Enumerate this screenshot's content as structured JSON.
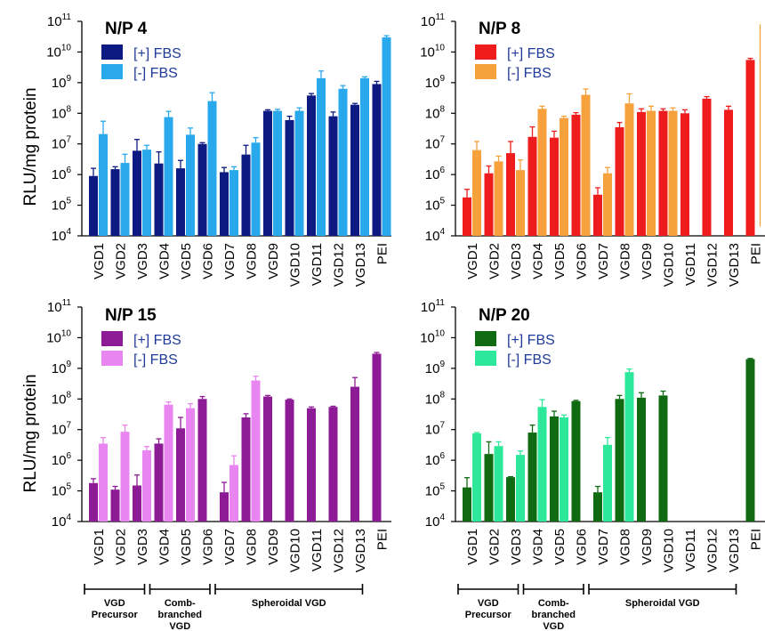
{
  "y_axis_label": "RLU/mg protein",
  "chart_data": [
    {
      "type": "bar",
      "title": "N/P 4",
      "log_scale": true,
      "ylim": [
        10000,
        100000000000
      ],
      "yticks": [
        "10",
        "10",
        "10",
        "10",
        "10",
        "10",
        "10",
        "10"
      ],
      "ytick_exponents": [
        "4",
        "5",
        "6",
        "7",
        "8",
        "9",
        "10",
        "11"
      ],
      "categories": [
        "VGD1",
        "VGD2",
        "VGD3",
        "VGD4",
        "VGD5",
        "VGD6",
        "VGD7",
        "VGD8",
        "VGD9",
        "VGD10",
        "VGD11",
        "VGD12",
        "VGD13",
        "PEI"
      ],
      "series": [
        {
          "name": "[+] FBS",
          "color": "#0d1a82",
          "values": [
            900000,
            1500000,
            6000000,
            2300000,
            1600000,
            10000000,
            1200000,
            4500000,
            120000000,
            60000000,
            380000000,
            80000000,
            190000000,
            900000000
          ],
          "errors": [
            1600000,
            1800000,
            14000000,
            5500000,
            2900000,
            11000000,
            1700000,
            9000000,
            130000000,
            80000000,
            440000000,
            110000000,
            210000000,
            1100000000
          ]
        },
        {
          "name": "[-] FBS",
          "color": "#29a8ec",
          "values": [
            21000000,
            2400000,
            6500000,
            75000000,
            20000000,
            250000000,
            1400000,
            11000000,
            120000000,
            120000000,
            1400000000,
            630000000,
            1400000000,
            30000000000
          ],
          "errors": [
            55000000,
            4600000,
            9000000,
            115000000,
            33000000,
            470000000,
            1800000,
            16000000,
            135000000,
            150000000,
            2400000000,
            800000000,
            1550000000,
            34000000000
          ]
        }
      ],
      "groups": []
    },
    {
      "type": "bar",
      "title": "N/P 8",
      "log_scale": true,
      "ylim": [
        10000,
        100000000000
      ],
      "yticks": [
        "10",
        "10",
        "10",
        "10",
        "10",
        "10",
        "10",
        "10"
      ],
      "ytick_exponents": [
        "4",
        "5",
        "6",
        "7",
        "8",
        "9",
        "10",
        "11"
      ],
      "categories": [
        "VGD1",
        "VGD2",
        "VGD3",
        "VGD4",
        "VGD5",
        "VGD6",
        "VGD7",
        "VGD8",
        "VGD9",
        "VGD10",
        "VGD11",
        "VGD12",
        "VGD13",
        "PEI"
      ],
      "series": [
        {
          "name": "[+] FBS",
          "color": "#ee1c1c",
          "values": [
            180000,
            1100000,
            5000000,
            17000000,
            16000000,
            90000000,
            220000,
            35000000,
            110000000,
            120000000,
            100000000,
            300000000,
            130000000,
            5500000000
          ],
          "errors": [
            330000,
            1900000,
            12000000,
            36000000,
            26000000,
            105000000,
            370000,
            50000000,
            140000000,
            140000000,
            130000000,
            350000000,
            170000000,
            6200000000
          ]
        },
        {
          "name": "[-] FBS",
          "color": "#f7a13c",
          "values": [
            6300000,
            2700000,
            1400000,
            140000000,
            70000000,
            400000000,
            1100000,
            210000000,
            120000000,
            120000000,
            null,
            null,
            null,
            null
          ],
          "errors": [
            12000000,
            4000000,
            3000000,
            170000000,
            80000000,
            620000000,
            1700000,
            430000000,
            170000000,
            150000000,
            null,
            null,
            null,
            80000000000
          ]
        }
      ],
      "groups": []
    },
    {
      "type": "bar",
      "title": "N/P 15",
      "log_scale": true,
      "ylim": [
        10000,
        100000000000
      ],
      "yticks": [
        "10",
        "10",
        "10",
        "10",
        "10",
        "10",
        "10",
        "10"
      ],
      "ytick_exponents": [
        "4",
        "5",
        "6",
        "7",
        "8",
        "9",
        "10",
        "11"
      ],
      "categories": [
        "VGD1",
        "VGD2",
        "VGD3",
        "VGD4",
        "VGD5",
        "VGD6",
        "VGD7",
        "VGD8",
        "VGD9",
        "VGD10",
        "VGD11",
        "VGD12",
        "VGD13",
        "PEI"
      ],
      "series": [
        {
          "name": "[+] FBS",
          "color": "#8e1b96",
          "values": [
            180000,
            110000,
            150000,
            3500000,
            11000000,
            100000000,
            90000,
            25000000,
            120000000,
            95000000,
            50000000,
            55000000,
            250000000,
            3000000000
          ],
          "errors": [
            250000,
            140000,
            330000,
            5000000,
            25000000,
            120000000,
            190000,
            33000000,
            130000000,
            100000000,
            55000000,
            58000000,
            500000000,
            3300000000
          ]
        },
        {
          "name": "[-] FBS",
          "color": "#e985f0",
          "values": [
            3500000,
            8500000,
            2100000,
            65000000,
            50000000,
            null,
            700000,
            400000000,
            null,
            null,
            null,
            null,
            null,
            null
          ],
          "errors": [
            5500000,
            14000000,
            2800000,
            80000000,
            70000000,
            null,
            1400000,
            550000000,
            null,
            null,
            null,
            null,
            null,
            null
          ]
        }
      ],
      "groups": [
        {
          "label_lines": [
            "VGD",
            "Precursor"
          ],
          "range": [
            "VGD1",
            "VGD3"
          ]
        },
        {
          "label_lines": [
            "Comb-",
            "branched",
            "VGD"
          ],
          "range": [
            "VGD4",
            "VGD6"
          ]
        },
        {
          "label_lines": [
            "Spheroidal VGD"
          ],
          "range": [
            "VGD7",
            "VGD13"
          ]
        }
      ]
    },
    {
      "type": "bar",
      "title": "N/P 20",
      "log_scale": true,
      "ylim": [
        10000,
        100000000000
      ],
      "yticks": [
        "10",
        "10",
        "10",
        "10",
        "10",
        "10",
        "10",
        "10"
      ],
      "ytick_exponents": [
        "4",
        "5",
        "6",
        "7",
        "8",
        "9",
        "10",
        "11"
      ],
      "categories": [
        "VGD1",
        "VGD2",
        "VGD3",
        "VGD4",
        "VGD5",
        "VGD6",
        "VGD7",
        "VGD8",
        "VGD9",
        "VGD10",
        "VGD11",
        "VGD12",
        "VGD13",
        "PEI"
      ],
      "series": [
        {
          "name": "[+] FBS",
          "color": "#0f6a12",
          "values": [
            130000,
            1600000,
            280000,
            8000000,
            27000000,
            85000000,
            90000,
            100000000,
            110000000,
            130000000,
            null,
            null,
            null,
            2000000000
          ],
          "errors": [
            270000,
            4000000,
            290000,
            14000000,
            40000000,
            90000000,
            140000,
            130000000,
            160000000,
            180000000,
            null,
            null,
            null,
            2100000000
          ]
        },
        {
          "name": "[-] FBS",
          "color": "#2de89a",
          "values": [
            7500000,
            2900000,
            1500000,
            55000000,
            25000000,
            null,
            3200000,
            750000000,
            null,
            null,
            null,
            null,
            null,
            null
          ],
          "errors": [
            8000000,
            4000000,
            2000000,
            95000000,
            30000000,
            null,
            5500000,
            950000000,
            null,
            null,
            null,
            null,
            null,
            null
          ]
        }
      ],
      "groups": [
        {
          "label_lines": [
            "VGD",
            "Precursor"
          ],
          "range": [
            "VGD1",
            "VGD3"
          ]
        },
        {
          "label_lines": [
            "Comb-",
            "branched",
            "VGD"
          ],
          "range": [
            "VGD4",
            "VGD6"
          ]
        },
        {
          "label_lines": [
            "Spheroidal VGD"
          ],
          "range": [
            "VGD7",
            "VGD13"
          ]
        }
      ]
    }
  ]
}
